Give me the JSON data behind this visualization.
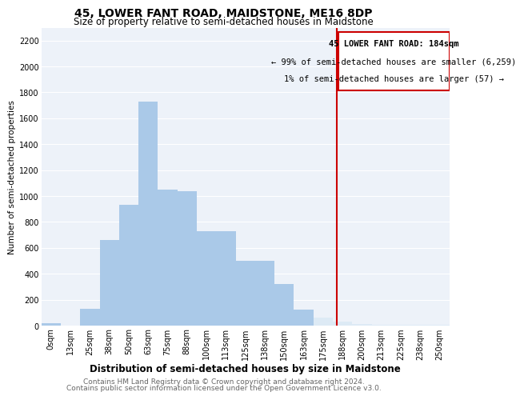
{
  "title": "45, LOWER FANT ROAD, MAIDSTONE, ME16 8DP",
  "subtitle": "Size of property relative to semi-detached houses in Maidstone",
  "xlabel": "Distribution of semi-detached houses by size in Maidstone",
  "ylabel": "Number of semi-detached properties",
  "footnote1": "Contains HM Land Registry data © Crown copyright and database right 2024.",
  "footnote2": "Contains public sector information licensed under the Open Government Licence v3.0.",
  "annotation_title": "45 LOWER FANT ROAD: 184sqm",
  "annotation_line1": "← 99% of semi-detached houses are smaller (6,259)",
  "annotation_line2": "1% of semi-detached houses are larger (57) →",
  "property_size": 184,
  "categories": [
    "0sqm",
    "13sqm",
    "25sqm",
    "38sqm",
    "50sqm",
    "63sqm",
    "75sqm",
    "88sqm",
    "100sqm",
    "113sqm",
    "125sqm",
    "138sqm",
    "150sqm",
    "163sqm",
    "175sqm",
    "188sqm",
    "200sqm",
    "213sqm",
    "225sqm",
    "238sqm",
    "250sqm"
  ],
  "bin_starts": [
    0,
    13,
    25,
    38,
    50,
    63,
    75,
    88,
    100,
    113,
    125,
    138,
    150,
    163,
    175,
    188,
    200,
    213,
    225,
    238,
    250
  ],
  "values": [
    20,
    0,
    130,
    660,
    930,
    1730,
    1050,
    1040,
    730,
    730,
    500,
    500,
    320,
    125,
    60,
    30,
    10,
    5,
    5,
    5,
    5
  ],
  "bar_color": "#aac9e8",
  "highlight_color": "#ddeaf5",
  "vline_color": "#cc0000",
  "annotation_box_color": "#cc0000",
  "ylim": [
    0,
    2300
  ],
  "yticks": [
    0,
    200,
    400,
    600,
    800,
    1000,
    1200,
    1400,
    1600,
    1800,
    2000,
    2200
  ],
  "background_color": "#ffffff",
  "plot_bg_color": "#edf2f9",
  "grid_color": "#ffffff",
  "title_fontsize": 10,
  "subtitle_fontsize": 8.5,
  "xlabel_fontsize": 8.5,
  "ylabel_fontsize": 7.5,
  "tick_fontsize": 7,
  "annotation_fontsize": 7.5,
  "footnote_fontsize": 6.5
}
